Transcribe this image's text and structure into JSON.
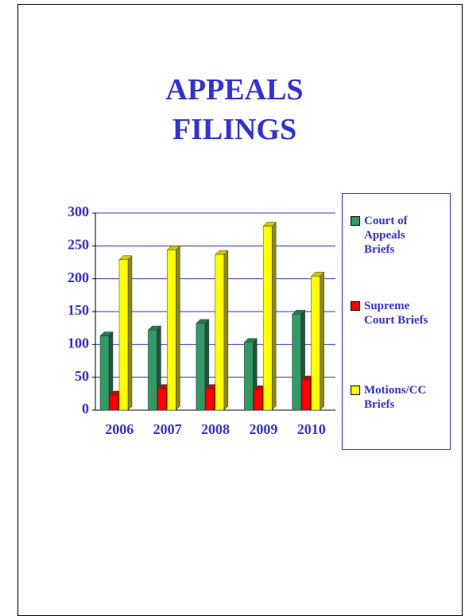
{
  "chart_data": {
    "type": "bar",
    "title": "APPEALS FILINGS",
    "categories": [
      "2006",
      "2007",
      "2008",
      "2009",
      "2010"
    ],
    "series": [
      {
        "name": "Court of Appeals Briefs",
        "color": "#339966",
        "values": [
          113,
          122,
          132,
          103,
          146
        ]
      },
      {
        "name": "Supreme Court Briefs",
        "color": "#ff0000",
        "values": [
          23,
          33,
          33,
          31,
          46
        ]
      },
      {
        "name": "Motions/CC Briefs",
        "color": "#ffff00",
        "values": [
          229,
          244,
          237,
          280,
          204
        ]
      }
    ],
    "ylim": [
      0,
      300
    ],
    "yticks": [
      0,
      50,
      100,
      150,
      200,
      250,
      300
    ],
    "grid": true,
    "legend": "right"
  }
}
